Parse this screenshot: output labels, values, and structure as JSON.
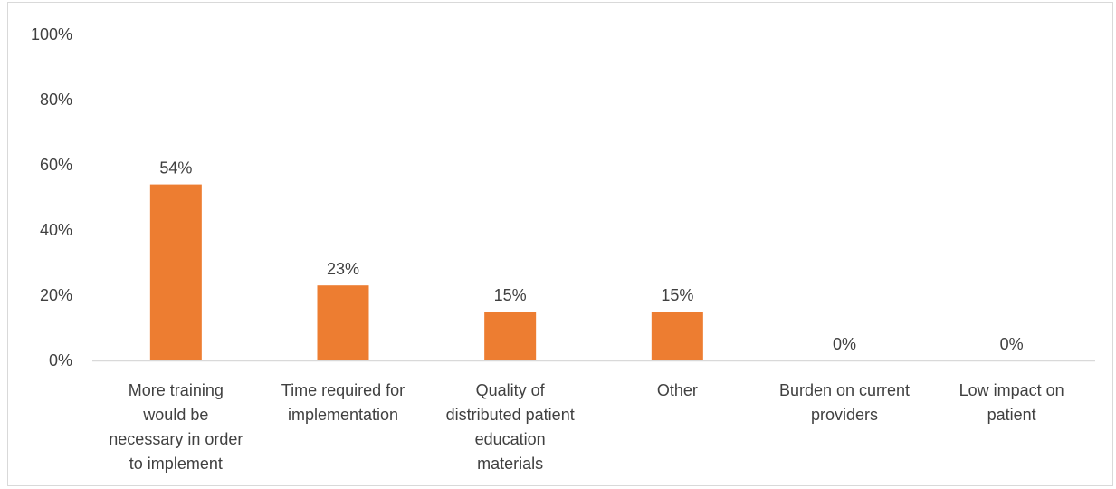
{
  "chart_data": {
    "type": "bar",
    "title": "",
    "xlabel": "",
    "ylabel": "",
    "categories": [
      "More training would be necessary in order to implement",
      "Time required for implementation",
      "Quality of distributed patient education materials",
      "Other",
      "Burden on current providers",
      "Low impact on patient"
    ],
    "category_label_lines": [
      [
        "More training",
        "would be",
        "necessary in order",
        "to implement"
      ],
      [
        "Time required for",
        "implementation"
      ],
      [
        "Quality of",
        "distributed patient",
        "education",
        "materials"
      ],
      [
        "Other"
      ],
      [
        "Burden on current",
        "providers"
      ],
      [
        "Low impact on",
        "patient"
      ]
    ],
    "values": [
      54,
      23,
      15,
      15,
      0,
      0
    ],
    "data_labels": [
      "54%",
      "23%",
      "15%",
      "15%",
      "0%",
      "0%"
    ],
    "ylim": [
      0,
      100
    ],
    "yticks": [
      0,
      20,
      40,
      60,
      80,
      100
    ],
    "ytick_labels": [
      "0%",
      "20%",
      "40%",
      "60%",
      "80%",
      "100%"
    ],
    "grid": false,
    "legend": "none",
    "colors": {
      "bar": "#ED7D31",
      "axis": "#d9d9d9",
      "text": "#404040"
    }
  }
}
